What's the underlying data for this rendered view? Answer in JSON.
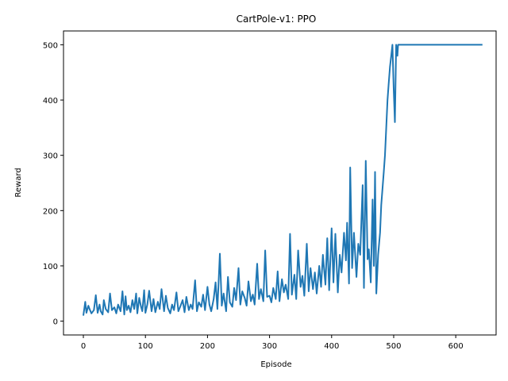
{
  "chart_data": {
    "type": "line",
    "title": "CartPole-v1: PPO",
    "xlabel": "Episode",
    "ylabel": "Reward",
    "xlim": [
      -32,
      665
    ],
    "ylim": [
      -25,
      525
    ],
    "xticks": [
      0,
      100,
      200,
      300,
      400,
      500,
      600
    ],
    "yticks": [
      0,
      100,
      200,
      300,
      400,
      500
    ],
    "grid": false,
    "series": [
      {
        "color": "#1f77b4",
        "x": [
          0,
          3,
          5,
          8,
          10,
          13,
          17,
          20,
          23,
          26,
          28,
          31,
          33,
          36,
          40,
          43,
          46,
          50,
          53,
          56,
          60,
          63,
          66,
          68,
          70,
          73,
          76,
          79,
          82,
          85,
          87,
          90,
          93,
          95,
          98,
          100,
          103,
          106,
          110,
          113,
          116,
          120,
          123,
          126,
          130,
          133,
          136,
          140,
          143,
          146,
          150,
          153,
          156,
          160,
          163,
          166,
          170,
          173,
          176,
          180,
          183,
          186,
          190,
          193,
          196,
          200,
          203,
          206,
          210,
          213,
          216,
          220,
          223,
          226,
          230,
          233,
          236,
          240,
          243,
          246,
          250,
          253,
          256,
          260,
          263,
          266,
          270,
          273,
          276,
          280,
          283,
          286,
          290,
          293,
          296,
          300,
          303,
          306,
          310,
          313,
          316,
          320,
          323,
          326,
          330,
          333,
          336,
          340,
          343,
          346,
          350,
          353,
          356,
          360,
          363,
          366,
          370,
          373,
          376,
          380,
          383,
          386,
          390,
          393,
          396,
          400,
          403,
          406,
          410,
          413,
          416,
          420,
          423,
          425,
          428,
          430,
          433,
          436,
          440,
          443,
          446,
          450,
          452,
          455,
          458,
          460,
          463,
          466,
          468,
          470,
          472,
          475,
          478,
          480,
          482,
          484,
          486,
          488,
          490,
          492,
          494,
          496,
          498,
          500,
          502,
          504,
          506,
          507,
          510,
          520,
          540,
          560,
          580,
          600,
          620,
          643
        ],
        "y": [
          10,
          35,
          15,
          28,
          22,
          14,
          20,
          47,
          15,
          30,
          18,
          12,
          38,
          22,
          16,
          50,
          20,
          25,
          14,
          30,
          18,
          54,
          12,
          45,
          20,
          28,
          16,
          38,
          22,
          50,
          14,
          42,
          26,
          18,
          56,
          15,
          30,
          55,
          18,
          40,
          16,
          35,
          22,
          58,
          18,
          46,
          24,
          14,
          30,
          20,
          52,
          18,
          26,
          38,
          16,
          44,
          20,
          30,
          22,
          74,
          18,
          34,
          26,
          48,
          20,
          62,
          30,
          18,
          40,
          70,
          22,
          122,
          28,
          50,
          18,
          80,
          34,
          26,
          60,
          38,
          96,
          30,
          54,
          42,
          28,
          72,
          36,
          48,
          30,
          104,
          40,
          58,
          36,
          128,
          44,
          46,
          34,
          60,
          40,
          90,
          36,
          76,
          52,
          66,
          40,
          158,
          48,
          84,
          40,
          128,
          62,
          82,
          46,
          140,
          54,
          96,
          58,
          88,
          50,
          100,
          62,
          120,
          66,
          150,
          56,
          168,
          70,
          158,
          52,
          120,
          88,
          160,
          110,
          178,
          68,
          278,
          96,
          160,
          80,
          140,
          120,
          246,
          60,
          290,
          112,
          130,
          70,
          220,
          100,
          270,
          50,
          120,
          160,
          210,
          240,
          270,
          300,
          350,
          400,
          430,
          460,
          480,
          500,
          420,
          360,
          500,
          480,
          500,
          500,
          500,
          500,
          500,
          500,
          500,
          500,
          500
        ]
      }
    ]
  }
}
